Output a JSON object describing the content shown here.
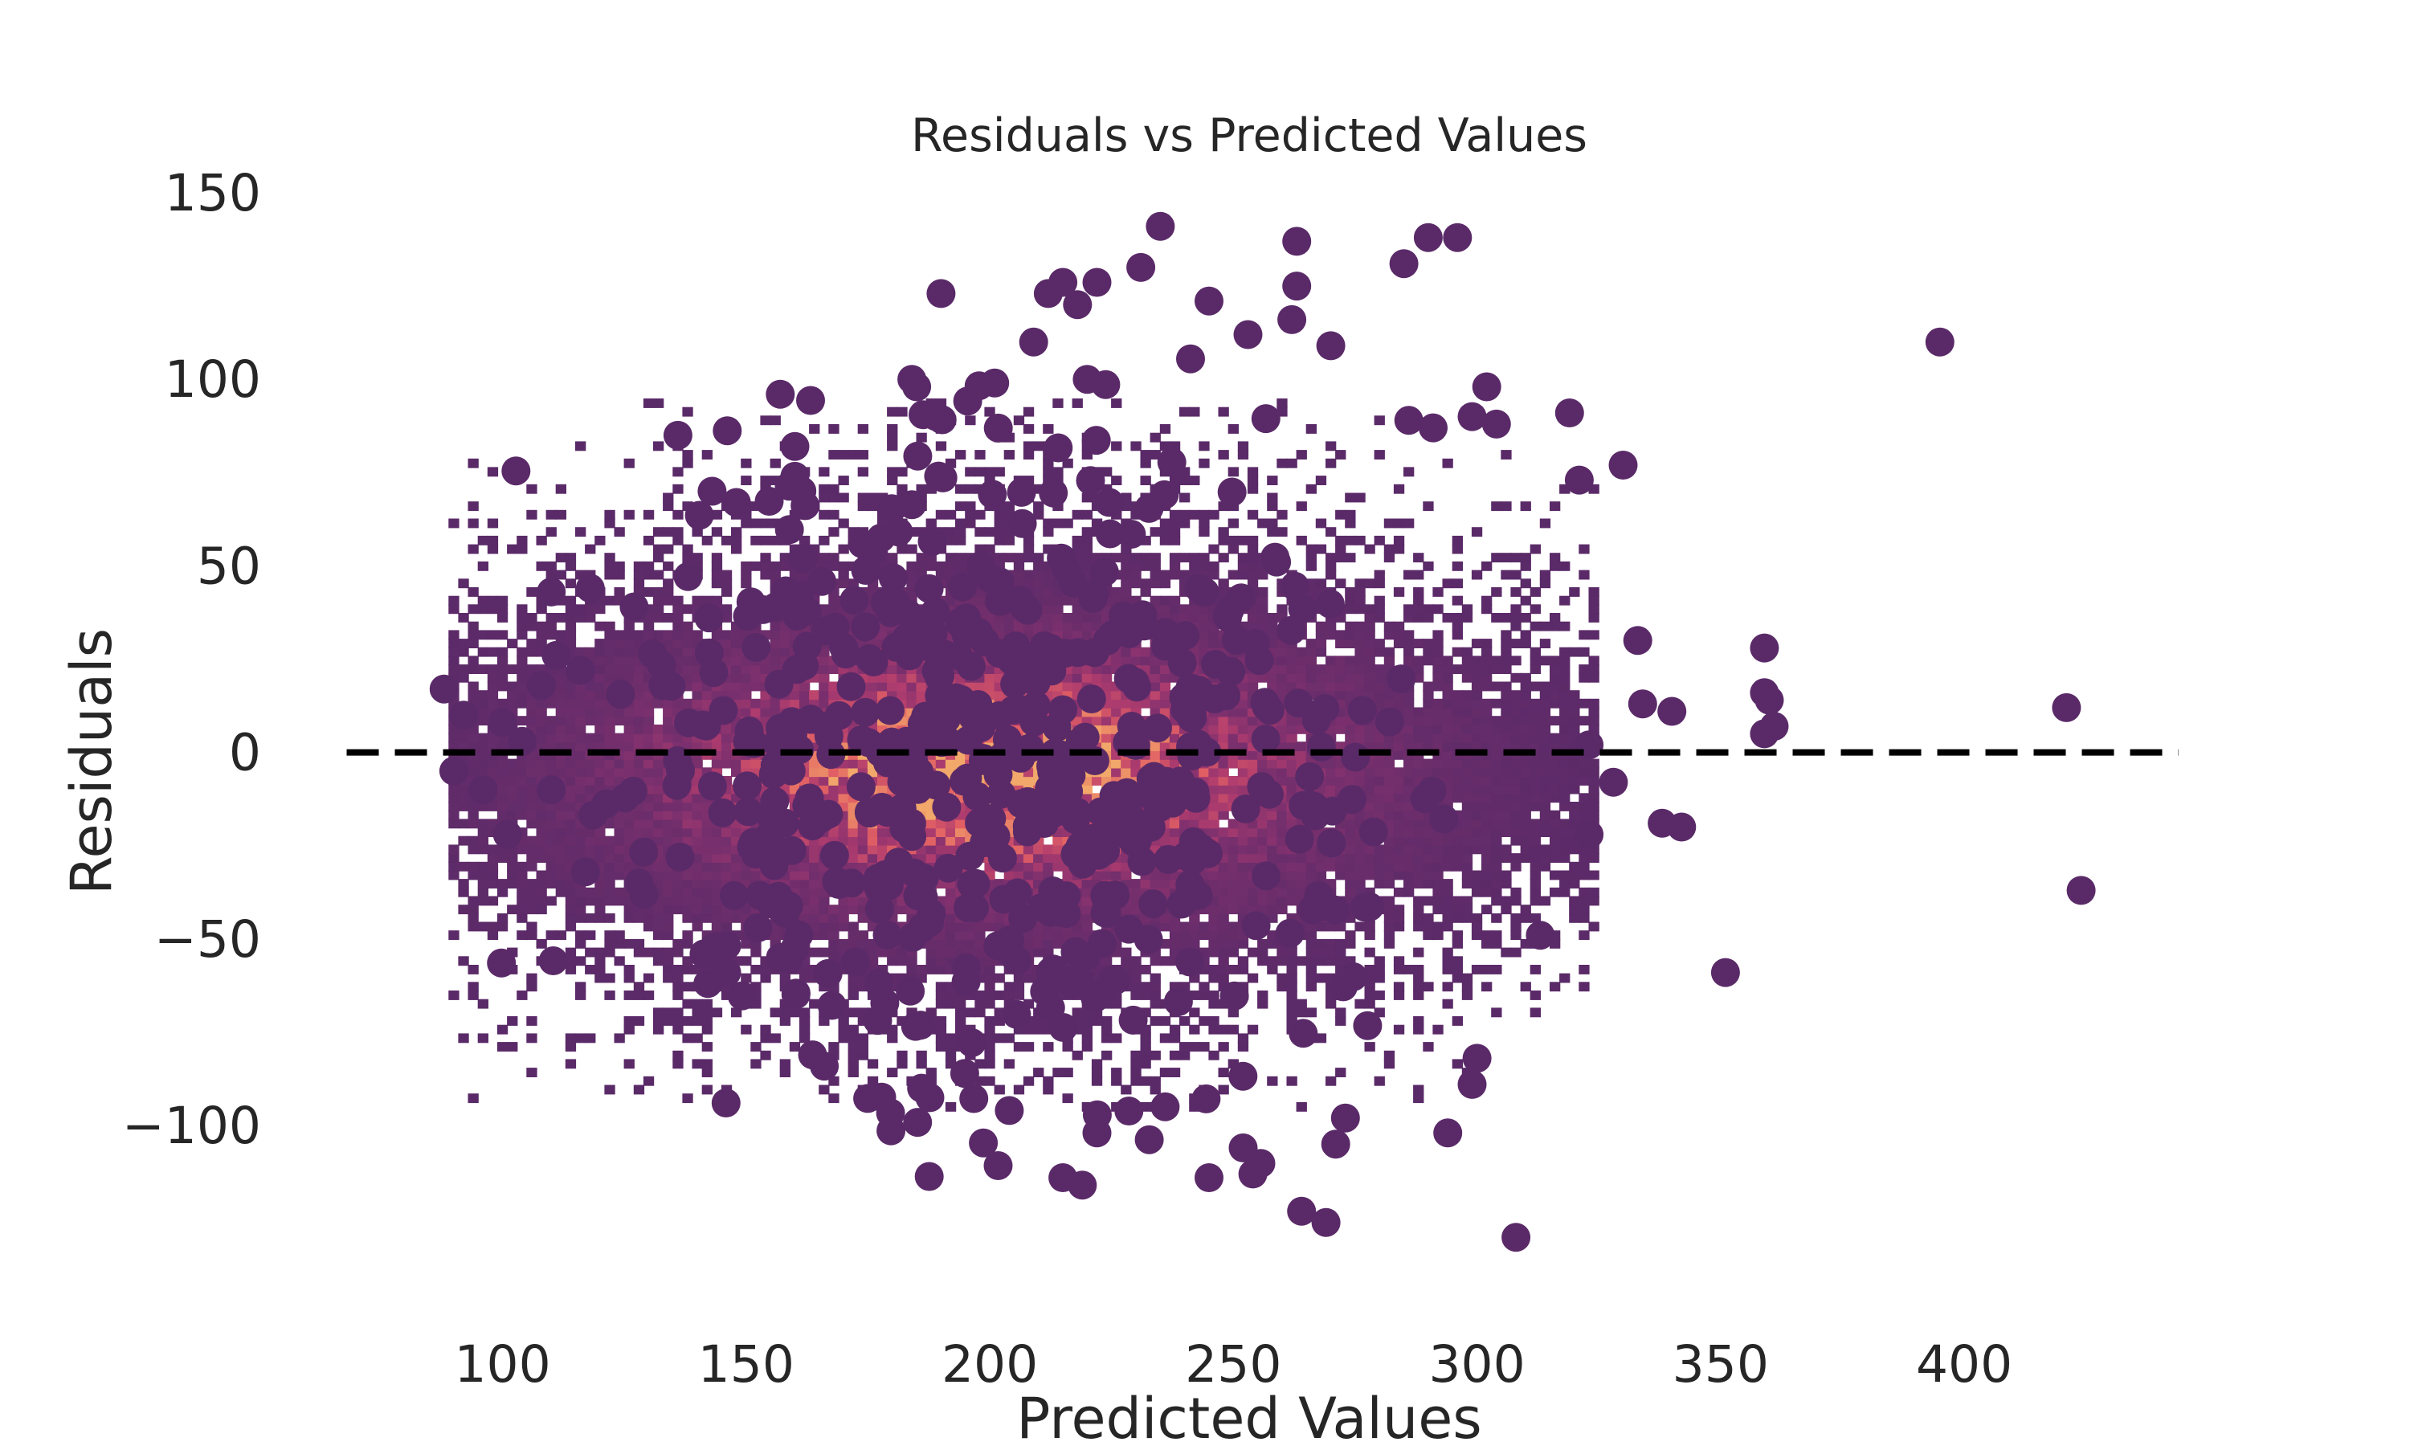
{
  "chart_data": {
    "type": "scatter",
    "title": "Residuals vs Predicted Values",
    "xlabel": "Predicted Values",
    "ylabel": "Residuals",
    "xlim": [
      60,
      445
    ],
    "ylim": [
      -145,
      150
    ],
    "x_ticks": [
      "100",
      "150",
      "200",
      "250",
      "300",
      "350",
      "400"
    ],
    "y_ticks": [
      "150",
      "100",
      "50",
      "0",
      "−50",
      "−100"
    ],
    "grid": false,
    "reference_line": {
      "y": 0,
      "style": "dashed",
      "color": "#000000"
    },
    "colors": {
      "point": "#5a2a68",
      "density_low": "#5a2a68",
      "density_high": "#f2a86a"
    },
    "density": {
      "x_range": [
        90,
        325
      ],
      "y_range": [
        -95,
        95
      ],
      "center_x": 200,
      "center_y": -5,
      "peak_residual_spread": 45
    },
    "outliers": [
      {
        "x": 88,
        "y": 17
      },
      {
        "x": 90,
        "y": -5
      },
      {
        "x": 92,
        "y": 10
      },
      {
        "x": 96,
        "y": -10
      },
      {
        "x": 100,
        "y": 8
      },
      {
        "x": 101,
        "y": -22
      },
      {
        "x": 104,
        "y": 3
      },
      {
        "x": 108,
        "y": 18
      },
      {
        "x": 110,
        "y": 43
      },
      {
        "x": 110,
        "y": -10
      },
      {
        "x": 111,
        "y": 26
      },
      {
        "x": 116,
        "y": 22
      },
      {
        "x": 117,
        "y": -32
      },
      {
        "x": 118,
        "y": 44
      },
      {
        "x": 127,
        "y": 39
      },
      {
        "x": 128,
        "y": -35
      },
      {
        "x": 136,
        "y": 85
      },
      {
        "x": 143,
        "y": 70
      },
      {
        "x": 146,
        "y": -59
      },
      {
        "x": 148,
        "y": 67
      },
      {
        "x": 157,
        "y": 96
      },
      {
        "x": 160,
        "y": 82
      },
      {
        "x": 160,
        "y": 74
      },
      {
        "x": 184,
        "y": 100
      },
      {
        "x": 185,
        "y": 98
      },
      {
        "x": 186,
        "y": -90
      },
      {
        "x": 189,
        "y": 90
      },
      {
        "x": 190,
        "y": 123
      },
      {
        "x": 201,
        "y": 99
      },
      {
        "x": 204,
        "y": -96
      },
      {
        "x": 209,
        "y": 110
      },
      {
        "x": 212,
        "y": 123
      },
      {
        "x": 215,
        "y": 126
      },
      {
        "x": 215,
        "y": -114
      },
      {
        "x": 218,
        "y": 120
      },
      {
        "x": 219,
        "y": -116
      },
      {
        "x": 220,
        "y": 100
      },
      {
        "x": 222,
        "y": 126
      },
      {
        "x": 222,
        "y": -102
      },
      {
        "x": 231,
        "y": 130
      },
      {
        "x": 235,
        "y": 141
      },
      {
        "x": 236,
        "y": -95
      },
      {
        "x": 245,
        "y": 121
      },
      {
        "x": 245,
        "y": -114
      },
      {
        "x": 252,
        "y": -106
      },
      {
        "x": 253,
        "y": 112
      },
      {
        "x": 254,
        "y": -113
      },
      {
        "x": 262,
        "y": 116
      },
      {
        "x": 263,
        "y": 137
      },
      {
        "x": 263,
        "y": 125
      },
      {
        "x": 264,
        "y": -123
      },
      {
        "x": 269,
        "y": -126
      },
      {
        "x": 270,
        "y": 109
      },
      {
        "x": 271,
        "y": -105
      },
      {
        "x": 273,
        "y": -98
      },
      {
        "x": 285,
        "y": 131
      },
      {
        "x": 286,
        "y": 89
      },
      {
        "x": 290,
        "y": 138
      },
      {
        "x": 291,
        "y": 87
      },
      {
        "x": 294,
        "y": -102
      },
      {
        "x": 296,
        "y": 138
      },
      {
        "x": 299,
        "y": -89
      },
      {
        "x": 299,
        "y": 90
      },
      {
        "x": 300,
        "y": -82
      },
      {
        "x": 302,
        "y": 98
      },
      {
        "x": 304,
        "y": 88
      },
      {
        "x": 308,
        "y": -130
      },
      {
        "x": 313,
        "y": -49
      },
      {
        "x": 319,
        "y": 91
      },
      {
        "x": 321,
        "y": 73
      },
      {
        "x": 323,
        "y": -22
      },
      {
        "x": 323,
        "y": 2
      },
      {
        "x": 328,
        "y": -8
      },
      {
        "x": 330,
        "y": 77
      },
      {
        "x": 333,
        "y": 30
      },
      {
        "x": 334,
        "y": 13
      },
      {
        "x": 338,
        "y": -19
      },
      {
        "x": 340,
        "y": 11
      },
      {
        "x": 342,
        "y": -20
      },
      {
        "x": 351,
        "y": -59
      },
      {
        "x": 359,
        "y": 28
      },
      {
        "x": 359,
        "y": 16
      },
      {
        "x": 359,
        "y": 5
      },
      {
        "x": 360,
        "y": 14
      },
      {
        "x": 361,
        "y": 7
      },
      {
        "x": 395,
        "y": 110
      },
      {
        "x": 421,
        "y": 12
      },
      {
        "x": 424,
        "y": -37
      }
    ]
  }
}
